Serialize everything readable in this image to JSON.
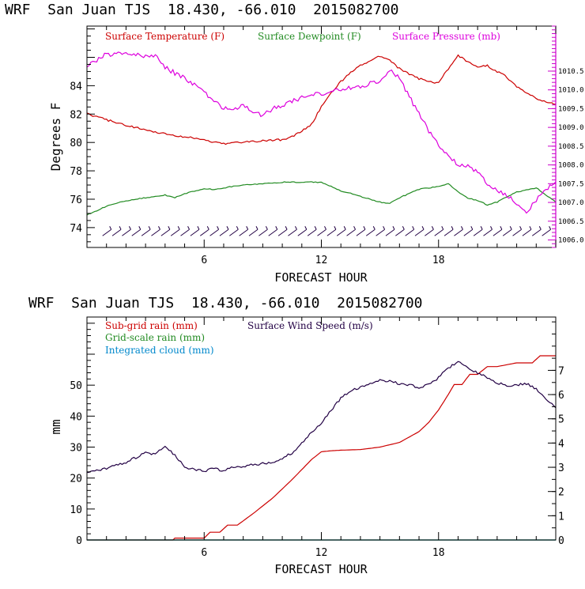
{
  "chart_data": [
    {
      "type": "line",
      "title": "WRF  San Juan TJS  18.430, -66.010  2015082700",
      "xlabel": "FORECAST HOUR",
      "ylabel": "Degrees F",
      "xlim": [
        0,
        24
      ],
      "ylim": [
        72.6,
        88.2
      ],
      "y2lim": [
        1005.8,
        1011.7
      ],
      "x_ticks": [
        "6",
        "12",
        "18"
      ],
      "y_ticks": [
        "74",
        "76",
        "78",
        "80",
        "82",
        "84"
      ],
      "y2_ticks": [
        "1006.0",
        "1006.5",
        "1007.0",
        "1007.5",
        "1008.0",
        "1008.5",
        "1009.0",
        "1009.5",
        "1010.0",
        "1010.5"
      ],
      "series": [
        {
          "name": "Surface Temperature (F)",
          "color": "#cc0000",
          "axis": "left",
          "x": [
            0,
            1,
            2,
            3,
            4,
            5,
            6,
            6.5,
            7,
            7.5,
            8,
            9,
            10,
            10.5,
            11,
            11.5,
            12,
            12.5,
            13,
            13.5,
            14,
            14.5,
            15,
            15.5,
            16,
            16.5,
            17,
            17.5,
            18,
            18.5,
            19,
            19.5,
            20,
            20.5,
            21,
            21.5,
            22,
            23,
            24
          ],
          "y": [
            82.0,
            81.6,
            81.2,
            80.9,
            80.6,
            80.4,
            80.2,
            80.0,
            79.9,
            80.0,
            80.0,
            80.1,
            80.2,
            80.4,
            80.8,
            81.3,
            82.5,
            83.5,
            84.3,
            84.9,
            85.4,
            85.7,
            86.1,
            85.8,
            85.2,
            84.8,
            84.5,
            84.3,
            84.2,
            85.2,
            86.1,
            85.7,
            85.3,
            85.4,
            85.0,
            84.6,
            83.9,
            83.1,
            82.7
          ]
        },
        {
          "name": "Surface Dewpoint (F)",
          "color": "#228b22",
          "axis": "left",
          "x": [
            0,
            1,
            2,
            3,
            4,
            4.5,
            5,
            6,
            6.5,
            7,
            8,
            9,
            10,
            11,
            11.5,
            12,
            12.5,
            13,
            14,
            15,
            15.5,
            16,
            17,
            18,
            18.5,
            19,
            19.5,
            20,
            20.5,
            21,
            22,
            23,
            24
          ],
          "y": [
            74.9,
            75.5,
            75.9,
            76.1,
            76.3,
            76.1,
            76.4,
            76.7,
            76.7,
            76.8,
            77.0,
            77.1,
            77.2,
            77.2,
            77.2,
            77.2,
            76.9,
            76.6,
            76.2,
            75.8,
            75.7,
            76.1,
            76.7,
            76.9,
            77.1,
            76.5,
            76.1,
            75.9,
            75.6,
            75.8,
            76.5,
            76.8,
            75.8
          ]
        },
        {
          "name": "Surface Pressure (mb)",
          "color": "#dd00dd",
          "axis": "right",
          "x": [
            0,
            0.5,
            1,
            2,
            3,
            3.5,
            4,
            5,
            6,
            6.5,
            7,
            7.5,
            8,
            8.5,
            9,
            9.5,
            10,
            10.5,
            11,
            11.5,
            12,
            13,
            14,
            15,
            15.5,
            16,
            16.5,
            17,
            17.5,
            18,
            18.5,
            19,
            19.5,
            20,
            20.5,
            21,
            21.5,
            22,
            22.5,
            23,
            23.5,
            24
          ],
          "y": [
            1010.65,
            1010.8,
            1010.95,
            1010.95,
            1010.9,
            1010.9,
            1010.6,
            1010.3,
            1009.95,
            1009.7,
            1009.5,
            1009.45,
            1009.6,
            1009.35,
            1009.35,
            1009.5,
            1009.6,
            1009.7,
            1009.8,
            1009.9,
            1009.9,
            1010.0,
            1010.1,
            1010.25,
            1010.55,
            1010.3,
            1009.8,
            1009.4,
            1008.9,
            1008.5,
            1008.25,
            1008.0,
            1007.95,
            1007.8,
            1007.5,
            1007.3,
            1007.2,
            1007.0,
            1006.75,
            1007.05,
            1007.35,
            1007.55
          ]
        },
        {
          "name": "Wind barbs",
          "color": "#220044",
          "kind": "barbs",
          "level": 73.7,
          "x": [
            1,
            1.5,
            2,
            2.5,
            3,
            3.5,
            4,
            4.5,
            5,
            5.5,
            6,
            6.5,
            7,
            7.5,
            8,
            8.5,
            9,
            9.5,
            10,
            10.5,
            11,
            11.5,
            12,
            12.5,
            13,
            13.5,
            14,
            14.5,
            15,
            15.5,
            16,
            16.5,
            17,
            17.5,
            18,
            18.5,
            19,
            19.5,
            20,
            20.5,
            21,
            21.5,
            22,
            22.5,
            23,
            23.5
          ]
        }
      ]
    },
    {
      "type": "line",
      "title": "WRF  San Juan TJS  18.430, -66.010  2015082700",
      "xlabel": "FORECAST HOUR",
      "ylabel": "mm",
      "xlim": [
        0,
        24
      ],
      "ylim": [
        0,
        72
      ],
      "y2lim": [
        0,
        9.2
      ],
      "x_ticks": [
        "6",
        "12",
        "18"
      ],
      "y_ticks": [
        "0",
        "10",
        "20",
        "30",
        "40",
        "50"
      ],
      "y2_ticks": [
        "0",
        "1",
        "2",
        "3",
        "4",
        "5",
        "6",
        "7"
      ],
      "series": [
        {
          "name": "Sub-grid rain (mm)",
          "color": "#cc0000",
          "axis": "left",
          "x": [
            0,
            4.4,
            4.5,
            5,
            5.5,
            6,
            6.3,
            6.8,
            7.2,
            7.7,
            8.5,
            9.5,
            10.5,
            11.5,
            12,
            12.5,
            13,
            14,
            15,
            16,
            17,
            17.5,
            18,
            18.5,
            18.8,
            19.2,
            19.6,
            20,
            20.5,
            21,
            21.5,
            22,
            22.8,
            23.2,
            24
          ],
          "y": [
            0,
            0,
            0.6,
            0.6,
            0.6,
            0.6,
            2.5,
            2.5,
            4.8,
            4.8,
            8.5,
            13.5,
            19.5,
            26,
            28.5,
            28.8,
            29,
            29.2,
            30,
            31.5,
            35,
            38,
            42,
            47,
            50.2,
            50.2,
            53.5,
            53.5,
            56,
            56,
            56.6,
            57.2,
            57.2,
            59.5,
            59.5
          ]
        },
        {
          "name": "Grid-scale rain (mm)",
          "color": "#228b22",
          "axis": "left",
          "x": [
            0,
            24
          ],
          "y": [
            0,
            0
          ]
        },
        {
          "name": "Integrated cloud (mm)",
          "color": "#0088cc",
          "axis": "left",
          "x": [
            0,
            24
          ],
          "y": [
            0,
            0
          ]
        },
        {
          "name": "Surface Wind Speed (m/s)",
          "color": "#220044",
          "axis": "right",
          "x": [
            0,
            1,
            2,
            3,
            3.5,
            4,
            4.5,
            5,
            5.5,
            6,
            6.5,
            7,
            7.5,
            8,
            8.5,
            9,
            9.5,
            10,
            10.5,
            11,
            11.5,
            12,
            12.5,
            13,
            13.5,
            14,
            14.5,
            15,
            15.5,
            16,
            16.5,
            17,
            17.5,
            18,
            18.5,
            19,
            19.5,
            20,
            20.5,
            21,
            21.5,
            22,
            22.5,
            23,
            23.5,
            24
          ],
          "y": [
            2.8,
            2.95,
            3.2,
            3.6,
            3.55,
            3.9,
            3.5,
            3.0,
            2.9,
            2.85,
            2.95,
            2.85,
            3.0,
            3.05,
            3.1,
            3.15,
            3.2,
            3.35,
            3.6,
            4.0,
            4.45,
            4.8,
            5.35,
            5.85,
            6.15,
            6.3,
            6.45,
            6.6,
            6.55,
            6.45,
            6.4,
            6.3,
            6.4,
            6.7,
            7.1,
            7.35,
            7.1,
            6.9,
            6.7,
            6.5,
            6.35,
            6.4,
            6.45,
            6.25,
            5.8,
            5.45
          ]
        }
      ]
    }
  ]
}
